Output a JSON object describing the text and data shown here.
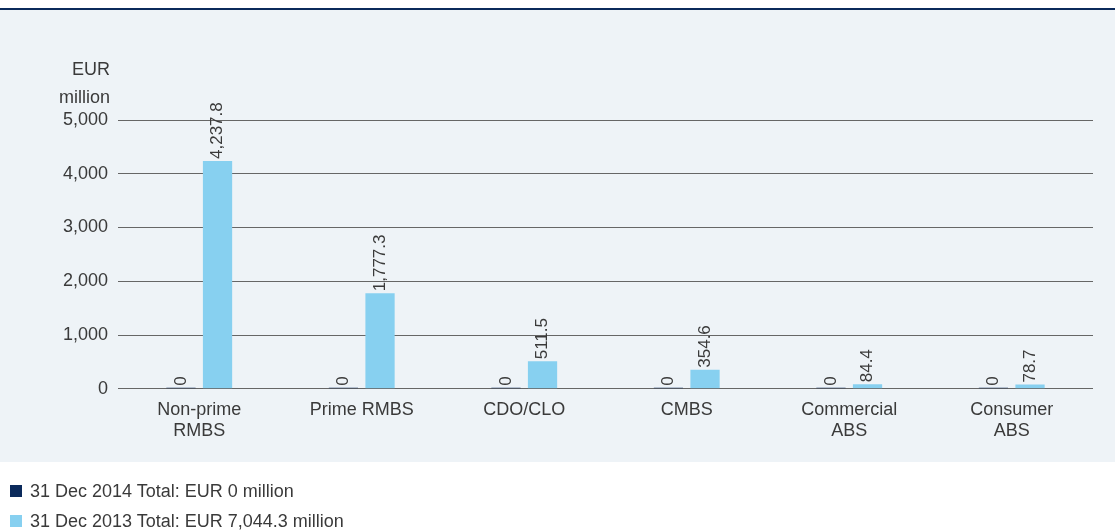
{
  "chart_data": {
    "type": "bar",
    "ylabel": "EUR million",
    "categories": [
      "Non-prime RMBS",
      "Prime RMBS",
      "CDO/CLO",
      "CMBS",
      "Commercial ABS",
      "Consumer ABS"
    ],
    "series": [
      {
        "name": "31 Dec 2014  Total: EUR 0 million",
        "color": "#0b2a5b",
        "values": [
          0,
          0,
          0,
          0,
          0,
          0
        ],
        "value_labels": [
          "0",
          "0",
          "0",
          "0",
          "0",
          "0"
        ]
      },
      {
        "name": "31 Dec 2013  Total: EUR 7,044.3 million",
        "color": "#87d0f0",
        "values": [
          4237.8,
          1777.3,
          511.5,
          354.6,
          84.4,
          78.7
        ],
        "value_labels": [
          "4,237.8",
          "1,777.3",
          "511.5",
          "354.6",
          "84.4",
          "78.7"
        ]
      }
    ],
    "ylim": [
      0,
      5000
    ],
    "yticks": [
      0,
      {
        "value": 1000,
        "label": "1,000"
      },
      {
        "value": 2000,
        "label": "2,000"
      },
      {
        "value": 3000,
        "label": "3,000"
      },
      {
        "value": 4000,
        "label": "4,000"
      },
      {
        "value": 5000,
        "label": "5,000"
      }
    ],
    "grid": "y",
    "legend": "bottom left"
  }
}
